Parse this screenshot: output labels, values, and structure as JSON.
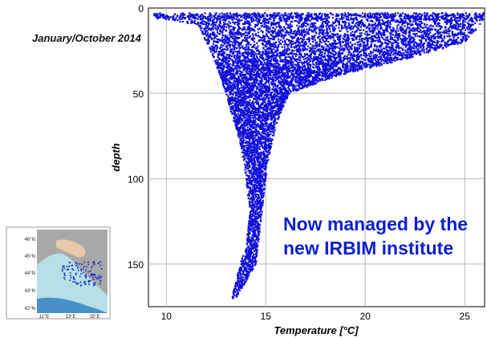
{
  "period_label": "January/October 2014",
  "note_lines": [
    "Now managed by the",
    "new IRBIM institute"
  ],
  "chart_data": {
    "type": "scatter",
    "title": "",
    "xlabel": "Temperature [°C]",
    "ylabel": "depth",
    "xlim": [
      9.1,
      26
    ],
    "ylim": [
      0,
      175
    ],
    "y_inverted": true,
    "xticks": [
      10,
      15,
      20,
      25
    ],
    "yticks": [
      0,
      50,
      100,
      150
    ],
    "grid": true,
    "marker_color": "#1010d8",
    "envelope": {
      "description_depths": [
        5,
        10,
        20,
        30,
        40,
        50,
        60,
        70,
        80,
        90,
        100,
        110,
        120,
        130,
        140,
        150,
        160,
        170
      ],
      "t_min": [
        9.3,
        11.6,
        12.0,
        12.4,
        12.7,
        13.0,
        13.2,
        13.5,
        13.7,
        13.9,
        14.0,
        14.1,
        14.2,
        14.1,
        14.0,
        13.7,
        13.5,
        13.3
      ],
      "t_max": [
        26.0,
        25.8,
        25.0,
        22.0,
        18.5,
        16.2,
        15.8,
        15.5,
        15.3,
        15.1,
        15.0,
        14.9,
        14.8,
        14.7,
        14.6,
        14.5,
        14.0,
        13.5
      ]
    }
  },
  "inset_map": {
    "lat_labels": [
      "46°N",
      "45°N",
      "44°N",
      "43°N",
      "42°N"
    ],
    "lon_labels": [
      "11°E",
      "13°E",
      "15°E"
    ],
    "colors": {
      "land": "#a8a8a8",
      "sea": "#b6dfe6",
      "deep_sea": "#4a90c8",
      "coast": "#e8c8a8",
      "stations": "#0a1fcc"
    }
  }
}
